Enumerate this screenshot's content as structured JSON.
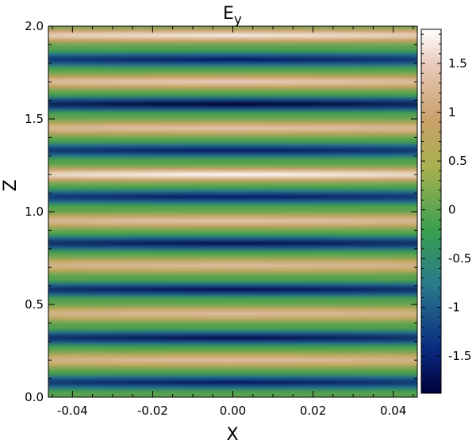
{
  "chart_data": {
    "type": "heatmap",
    "title": "E",
    "title_subscript": "y",
    "xlabel": "X",
    "ylabel": "Z",
    "xlim": [
      -0.046,
      0.046
    ],
    "ylim": [
      0.0,
      2.0
    ],
    "x_ticks": [
      -0.04,
      -0.02,
      0.0,
      0.02,
      0.04
    ],
    "x_tick_labels": [
      "-0.04",
      "-0.02",
      "0.00",
      "0.02",
      "0.04"
    ],
    "y_ticks": [
      0.0,
      0.5,
      1.0,
      1.5,
      2.0
    ],
    "y_tick_labels": [
      "0.0",
      "0.5",
      "1.0",
      "1.5",
      "2.0"
    ],
    "colorbar": {
      "range": [
        -1.88,
        1.85
      ],
      "ticks": [
        -1.5,
        -1,
        -0.5,
        0,
        0.5,
        1,
        1.5
      ],
      "tick_labels": [
        "-1.5",
        "-1",
        "-0.5",
        "0",
        "0.5",
        "1",
        "1.5"
      ]
    },
    "colormap": [
      "#00003a",
      "#0a2a82",
      "#2a7a8a",
      "#3aa050",
      "#a8b050",
      "#c8a068",
      "#e8c8b8",
      "#ffffff"
    ],
    "grid": false,
    "stripes": [
      {
        "z": 0.03,
        "value": 0.0
      },
      {
        "z": 0.08,
        "value": -1.6
      },
      {
        "z": 0.2,
        "value": 1.3
      },
      {
        "z": 0.32,
        "value": -1.7
      },
      {
        "z": 0.45,
        "value": 1.3
      },
      {
        "z": 0.58,
        "value": -1.7
      },
      {
        "z": 0.71,
        "value": 1.3
      },
      {
        "z": 0.83,
        "value": -1.7
      },
      {
        "z": 0.95,
        "value": 1.4
      },
      {
        "z": 1.08,
        "value": -1.6
      },
      {
        "z": 1.2,
        "value": 1.8
      },
      {
        "z": 1.33,
        "value": -1.6
      },
      {
        "z": 1.45,
        "value": 1.4
      },
      {
        "z": 1.58,
        "value": -1.85
      },
      {
        "z": 1.7,
        "value": 1.5
      },
      {
        "z": 1.82,
        "value": -1.6
      },
      {
        "z": 1.95,
        "value": 1.7
      },
      {
        "z": 2.0,
        "value": 0.0
      }
    ],
    "x_envelope_width": 0.03
  }
}
